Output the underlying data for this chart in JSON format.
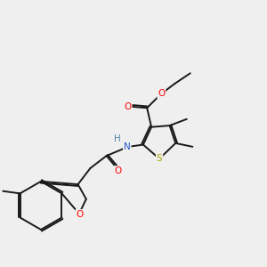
{
  "bg_color": "#efefef",
  "bond_color": "#1a1a1a",
  "atom_colors": {
    "O": "#ff0000",
    "N": "#2255cc",
    "S": "#aaaa00",
    "H": "#5588aa",
    "C": "#1a1a1a"
  },
  "lw": 1.4,
  "fontsize": 7.5
}
